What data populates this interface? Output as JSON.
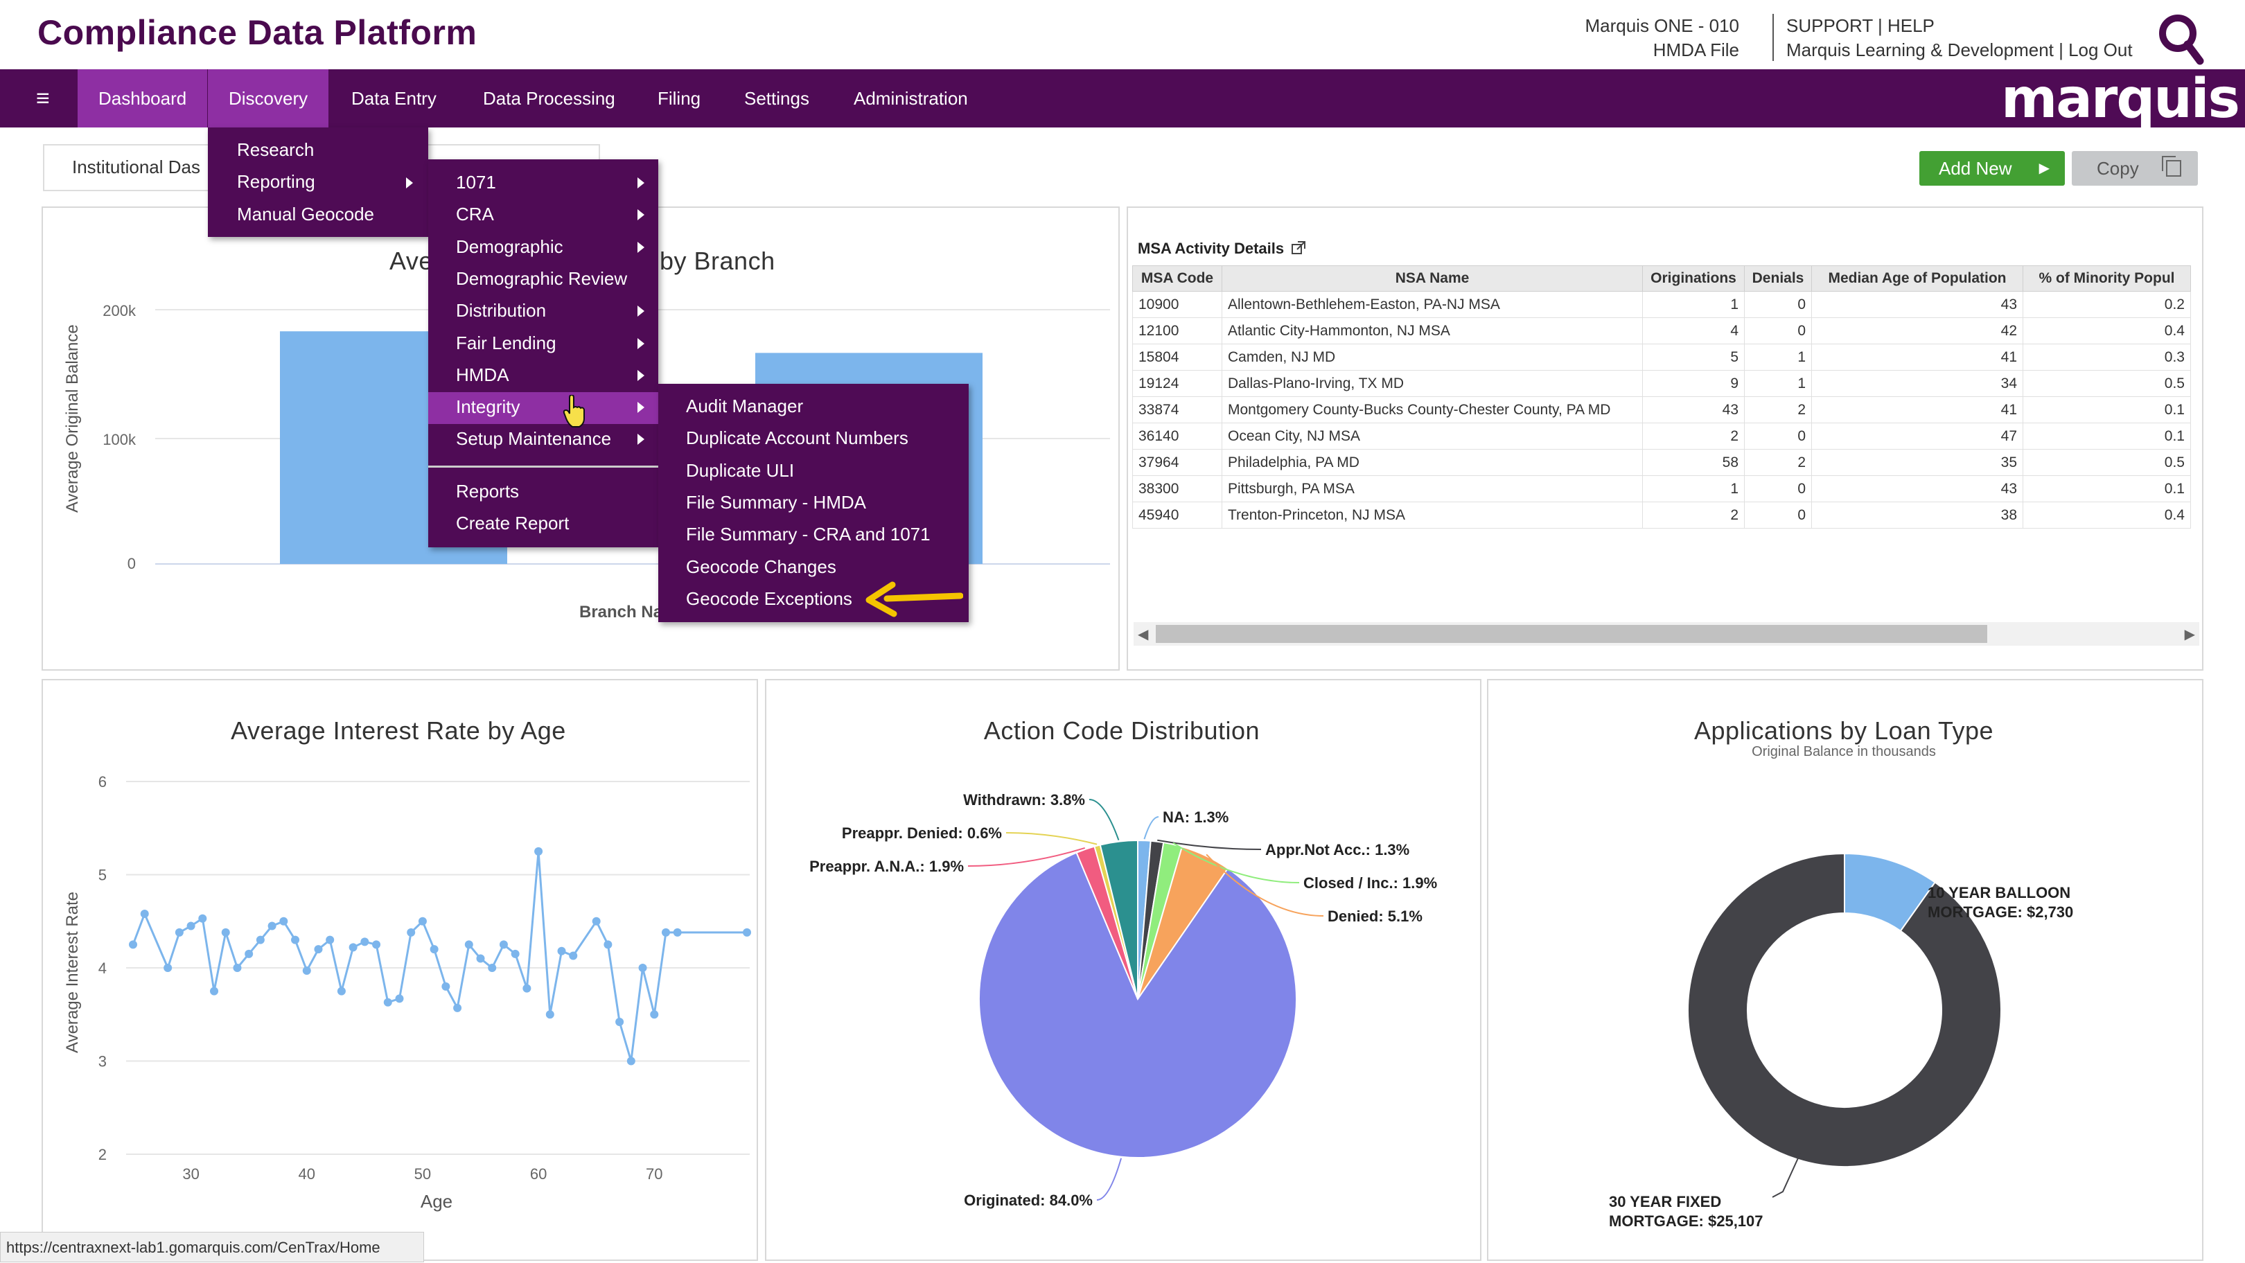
{
  "app": {
    "title": "Compliance Data Platform",
    "brand": "marquis"
  },
  "header": {
    "institution": "Marquis ONE - 010",
    "file": "HMDA File",
    "links_line1": "SUPPORT | HELP",
    "links_line2": "Marquis Learning & Development | Log Out"
  },
  "nav": {
    "items": [
      {
        "label": "Dashboard",
        "active": true
      },
      {
        "label": "Discovery",
        "active": true
      },
      {
        "label": "Data Entry"
      },
      {
        "label": "Data Processing"
      },
      {
        "label": "Filing"
      },
      {
        "label": "Settings"
      },
      {
        "label": "Administration"
      }
    ]
  },
  "toolbar": {
    "institution_box": "Institutional Das",
    "add_new": "Add New",
    "copy": "Copy"
  },
  "discovery_menu": [
    "Research",
    "Reporting",
    "Manual Geocode"
  ],
  "reporting_menu": {
    "items": [
      "1071",
      "CRA",
      "Demographic",
      "Demographic Review",
      "Distribution",
      "Fair Lending",
      "HMDA",
      "Integrity",
      "Setup Maintenance"
    ],
    "items_after_divider": [
      "Reports",
      "Create Report"
    ]
  },
  "integrity_menu": [
    "Audit Manager",
    "Duplicate Account Numbers",
    "Duplicate ULI",
    "File Summary - HMDA",
    "File Summary - CRA and 1071",
    "Geocode Changes",
    "Geocode Exceptions"
  ],
  "msa": {
    "title": "MSA Activity Details",
    "columns": [
      "MSA Code",
      "NSA Name",
      "Originations",
      "Denials",
      "Median Age of Population",
      "% of Minority Popul"
    ],
    "rows": [
      [
        "10900",
        "Allentown-Bethlehem-Easton, PA-NJ MSA",
        "1",
        "0",
        "43",
        "0.2"
      ],
      [
        "12100",
        "Atlantic City-Hammonton, NJ MSA",
        "4",
        "0",
        "42",
        "0.4"
      ],
      [
        "15804",
        "Camden, NJ MD",
        "5",
        "1",
        "41",
        "0.3"
      ],
      [
        "19124",
        "Dallas-Plano-Irving, TX MD",
        "9",
        "1",
        "34",
        "0.5"
      ],
      [
        "33874",
        "Montgomery County-Bucks County-Chester County, PA MD",
        "43",
        "2",
        "41",
        "0.1"
      ],
      [
        "36140",
        "Ocean City, NJ MSA",
        "2",
        "0",
        "47",
        "0.1"
      ],
      [
        "37964",
        "Philadelphia, PA MD",
        "58",
        "2",
        "35",
        "0.5"
      ],
      [
        "38300",
        "Pittsburgh, PA MSA",
        "1",
        "0",
        "43",
        "0.1"
      ],
      [
        "45940",
        "Trenton-Princeton, NJ MSA",
        "2",
        "0",
        "38",
        "0.4"
      ]
    ]
  },
  "status_url": "https://centraxnext-lab1.gomarquis.com/CenTrax/Home",
  "chart_data": [
    {
      "type": "bar",
      "title_left": "Ave",
      "title_right": "by Branch",
      "xlabel_visible": "Branch Na",
      "ylabel": "Average Original Balance",
      "y_ticks": [
        "0",
        "100k",
        "200k"
      ],
      "ylim": [
        0,
        200000
      ],
      "values": [
        183000,
        166000
      ],
      "color": "#7cb5ec"
    },
    {
      "type": "line",
      "title": "Average Interest Rate by Age",
      "xlabel": "Age",
      "ylabel": "Average Interest Rate",
      "xlim": [
        25,
        78
      ],
      "ylim": [
        2,
        6
      ],
      "x_ticks": [
        "30",
        "40",
        "50",
        "60",
        "70"
      ],
      "y_ticks": [
        "2",
        "3",
        "4",
        "5",
        "6"
      ],
      "x": [
        25,
        26,
        28,
        29,
        30,
        31,
        32,
        33,
        34,
        35,
        36,
        37,
        38,
        39,
        40,
        41,
        42,
        43,
        44,
        45,
        46,
        47,
        48,
        49,
        50,
        51,
        52,
        53,
        54,
        55,
        56,
        57,
        58,
        59,
        60,
        61,
        62,
        63,
        65,
        66,
        67,
        68,
        69,
        70,
        71,
        72,
        78
      ],
      "y": [
        4.25,
        4.58,
        4.0,
        4.38,
        4.45,
        4.53,
        3.75,
        4.38,
        4.0,
        4.15,
        4.3,
        4.45,
        4.5,
        4.3,
        3.97,
        4.2,
        4.3,
        3.75,
        4.22,
        4.28,
        4.25,
        3.63,
        3.67,
        4.38,
        4.5,
        4.2,
        3.8,
        3.57,
        4.25,
        4.1,
        4.0,
        4.25,
        4.15,
        3.78,
        5.25,
        3.5,
        4.18,
        4.13,
        4.5,
        4.25,
        3.42,
        3.0,
        4.0,
        3.5,
        4.38,
        4.38,
        4.38
      ],
      "color": "#7cb5ec"
    },
    {
      "type": "pie",
      "title": "Action Code Distribution",
      "slices": [
        {
          "label": "NA",
          "value": 1.3,
          "color": "#7cb5ec",
          "text": "NA: 1.3%"
        },
        {
          "label": "Appr.Not Acc.",
          "value": 1.3,
          "color": "#434348",
          "text": "Appr.Not Acc.: 1.3%"
        },
        {
          "label": "Closed / Inc.",
          "value": 1.9,
          "color": "#90ed7d",
          "text": "Closed / Inc.: 1.9%"
        },
        {
          "label": "Denied",
          "value": 5.1,
          "color": "#f7a35c",
          "text": "Denied: 5.1%"
        },
        {
          "label": "Originated",
          "value": 84.0,
          "color": "#8085e9",
          "text": "Originated: 84.0%"
        },
        {
          "label": "Preappr. A.N.A.",
          "value": 1.9,
          "color": "#f15c80",
          "text": "Preappr. A.N.A.: 1.9%"
        },
        {
          "label": "Preappr. Denied",
          "value": 0.6,
          "color": "#e4d354",
          "text": "Preappr. Denied: 0.6%"
        },
        {
          "label": "Withdrawn",
          "value": 3.8,
          "color": "#2b908f",
          "text": "Withdrawn: 3.8%"
        }
      ]
    },
    {
      "type": "pie",
      "title": "Applications by Loan Type",
      "subtitle": "Original Balance in thousands",
      "slices": [
        {
          "label": "10 YEAR BALLOON MORTGAGE",
          "value": 2730,
          "color": "#7cb5ec",
          "line1": "10 YEAR BALLOON",
          "line2": "MORTGAGE: $2,730"
        },
        {
          "label": "30 YEAR FIXED MORTGAGE",
          "value": 25107,
          "color": "#434348",
          "line1": "30 YEAR FIXED",
          "line2": "MORTGAGE: $25,107"
        }
      ]
    }
  ]
}
